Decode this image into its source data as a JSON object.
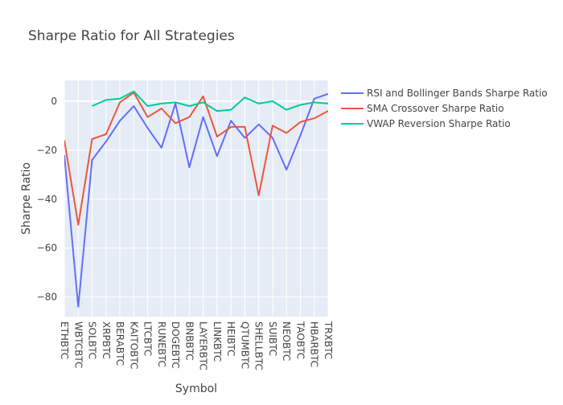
{
  "chart_data": {
    "type": "line",
    "title": "Sharpe Ratio for All Strategies",
    "xlabel": "Symbol",
    "ylabel": "Sharpe Ratio",
    "ylim": [
      -88,
      8.5
    ],
    "yticks": [
      0,
      -20,
      -40,
      -60,
      -80
    ],
    "grid": true,
    "legend_position": "top-right",
    "categories": [
      "ETHBTC",
      "WBTCBTC",
      "SOLBTC",
      "XRPBTC",
      "BERABTC",
      "KAITOBTC",
      "LTCBTC",
      "RUNEBTC",
      "DOGEBTC",
      "BNBBTC",
      "LAYERBTC",
      "LINKBTC",
      "HEIBTC",
      "QTUMBTC",
      "SHELLBTC",
      "SUIBTC",
      "NEOBTC",
      "TAOBTC",
      "HBARBTC",
      "TRXBTC"
    ],
    "series": [
      {
        "name": "RSI and Bollinger Bands Sharpe Ratio",
        "color": "#636efa",
        "values": [
          -22,
          -84,
          -24,
          -16.5,
          -8,
          -2,
          -11,
          -19,
          -1,
          -27,
          -6.5,
          -22.5,
          -8,
          -15,
          -9.5,
          -15,
          -28,
          -14,
          1,
          3
        ]
      },
      {
        "name": "SMA Crossover Sharpe Ratio",
        "color": "#ef553b",
        "values": [
          -16,
          -50.5,
          -15.5,
          -13.5,
          -0.5,
          3.5,
          -6.5,
          -3,
          -9,
          -6.5,
          2,
          -14.5,
          -10.5,
          -10.5,
          -38.5,
          -10,
          -13,
          -8.5,
          -7,
          -4
        ]
      },
      {
        "name": "VWAP Reversion Sharpe Ratio",
        "color": "#00cc96",
        "values": [
          null,
          null,
          -2,
          0.5,
          1,
          4,
          -2,
          -1,
          -0.5,
          -2,
          -0.5,
          -4,
          -3.5,
          1.5,
          -1,
          0,
          -3.5,
          -1.5,
          -0.5,
          -1
        ]
      }
    ]
  }
}
